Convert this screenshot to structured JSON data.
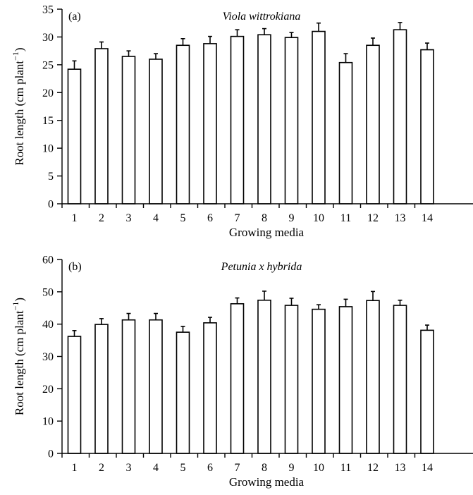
{
  "chart_data": [
    {
      "type": "bar",
      "panel_label": "(a)",
      "title": "Viola wittrokiana",
      "xlabel": "Growing media",
      "ylabel": "Root length (cm plant",
      "ylabel_superscript": "−1",
      "ylabel_close": ")",
      "ylim": [
        0,
        35
      ],
      "yticks": [
        0,
        5,
        10,
        15,
        20,
        25,
        30,
        35
      ],
      "grid": false,
      "categories": [
        "1",
        "2",
        "3",
        "4",
        "5",
        "6",
        "7",
        "8",
        "9",
        "10",
        "11",
        "12",
        "13",
        "14"
      ],
      "values": [
        24.2,
        27.9,
        26.5,
        26.0,
        28.5,
        28.8,
        30.1,
        30.4,
        29.9,
        31.0,
        25.4,
        28.5,
        31.3,
        27.7
      ],
      "errors": [
        1.5,
        1.2,
        1.0,
        1.0,
        1.2,
        1.3,
        1.2,
        1.1,
        0.9,
        1.5,
        1.6,
        1.3,
        1.3,
        1.2
      ],
      "bar_fill": "#ffffff",
      "bar_stroke": "#000000"
    },
    {
      "type": "bar",
      "panel_label": "(b)",
      "title": "Petunia x hybrida",
      "xlabel": "Growing media",
      "ylabel": "Root length (cm plant",
      "ylabel_superscript": "−1",
      "ylabel_close": ")",
      "ylim": [
        0,
        60
      ],
      "yticks": [
        0,
        10,
        20,
        30,
        40,
        50,
        60
      ],
      "grid": false,
      "categories": [
        "1",
        "2",
        "3",
        "4",
        "5",
        "6",
        "7",
        "8",
        "9",
        "10",
        "11",
        "12",
        "13",
        "14"
      ],
      "values": [
        36.2,
        39.9,
        41.3,
        41.3,
        37.5,
        40.4,
        46.3,
        47.4,
        45.8,
        44.6,
        45.4,
        47.3,
        45.8,
        38.1
      ],
      "errors": [
        1.8,
        1.8,
        2.0,
        2.0,
        1.8,
        1.7,
        1.8,
        2.8,
        2.2,
        1.4,
        2.3,
        2.8,
        1.6,
        1.6
      ],
      "bar_fill": "#ffffff",
      "bar_stroke": "#000000"
    }
  ]
}
